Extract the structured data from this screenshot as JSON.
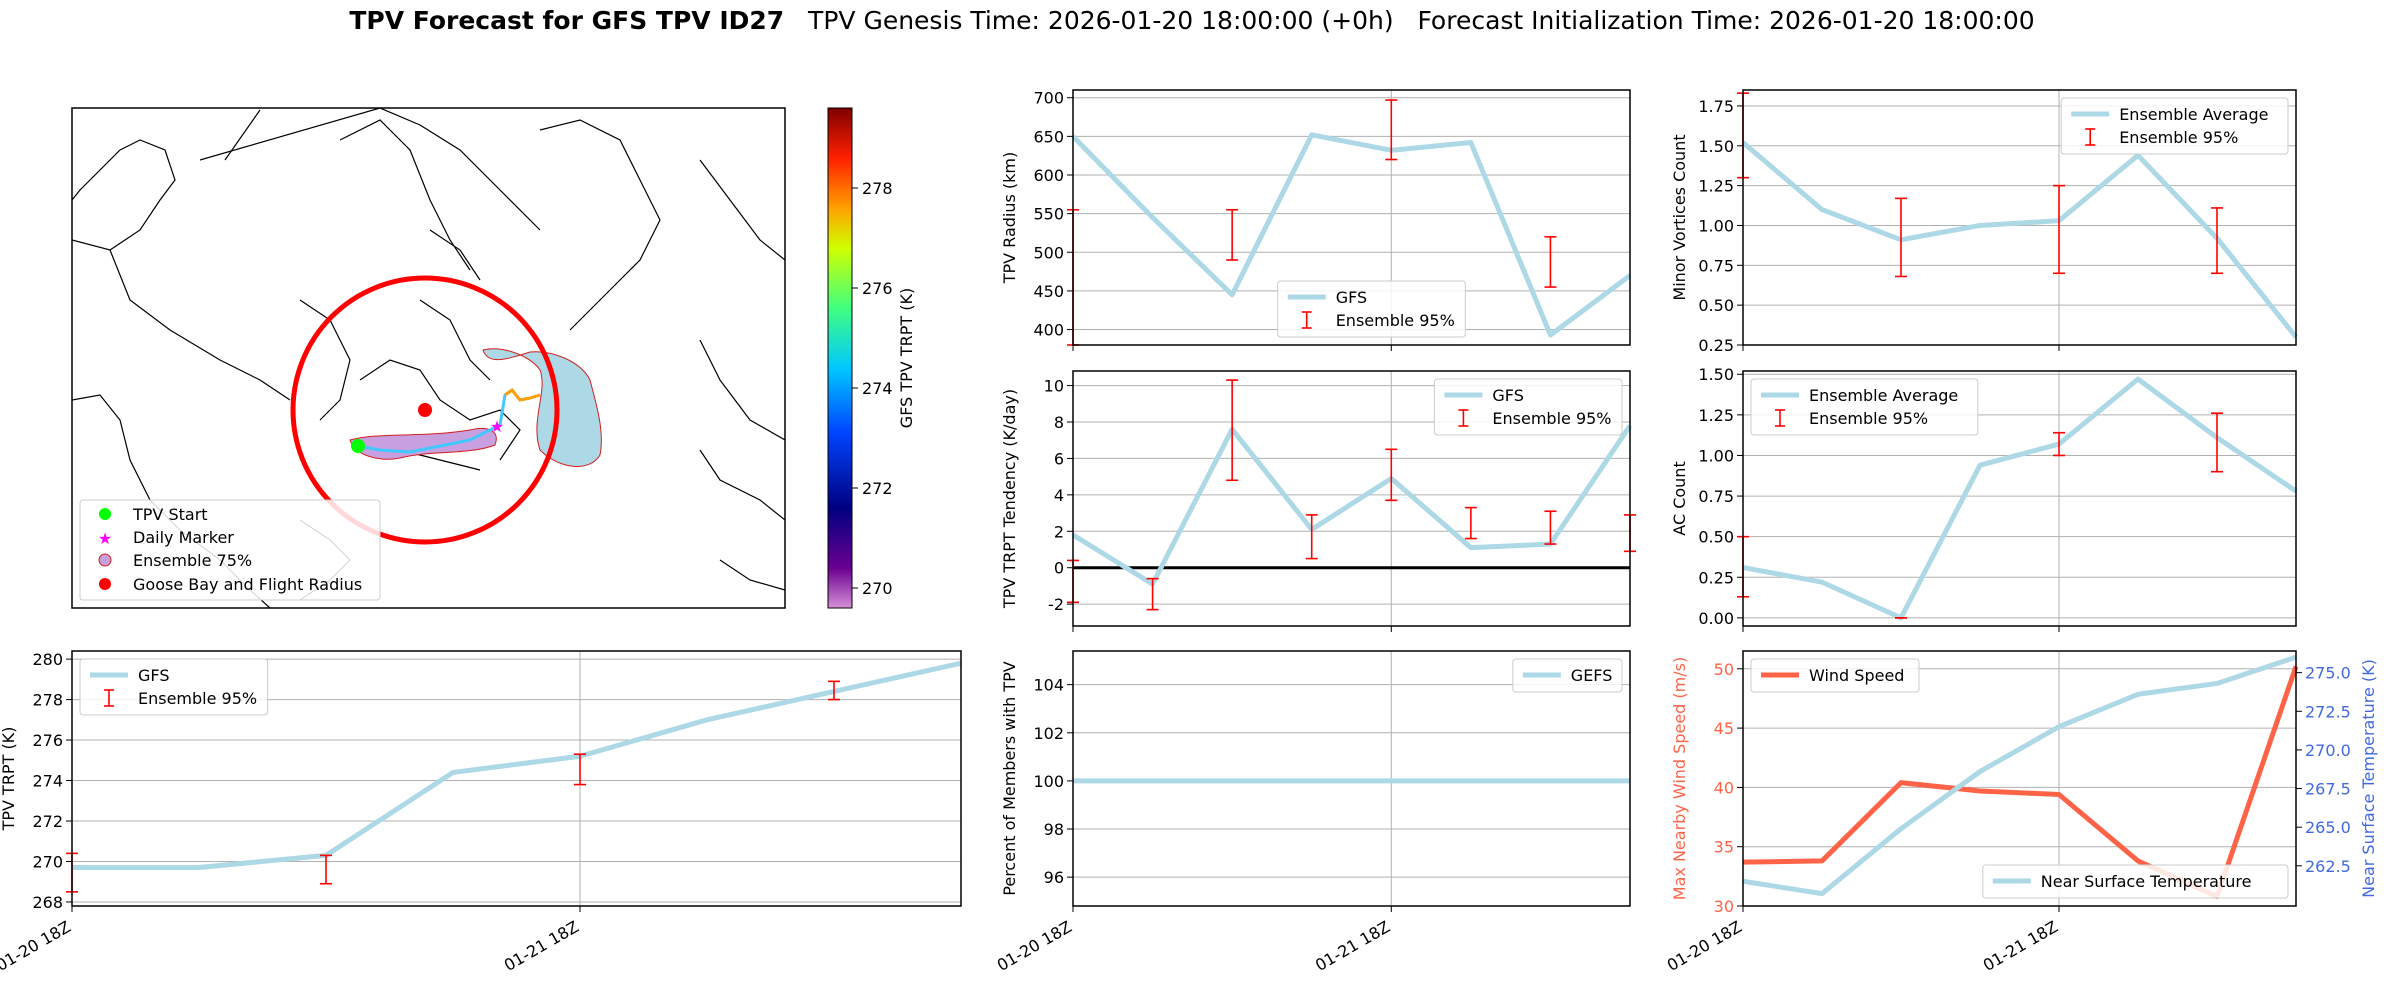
{
  "title": {
    "bold": "TPV Forecast for GFS TPV ID27",
    "genesis": "TPV Genesis Time: 2026-01-20 18:00:00 (+0h)",
    "init": "Forecast Initialization Time: 2026-01-20 18:00:00"
  },
  "colors": {
    "series": "#add8e6",
    "error": "#ff0000",
    "wind": "#ff6347",
    "temp_axis": "#4169e1",
    "zero_line": "#000000"
  },
  "map": {
    "colorbar": {
      "label": "GFS TPV TRPT (K)",
      "ticks": [
        270,
        272,
        274,
        276,
        278
      ],
      "range": [
        269.6,
        279.6
      ]
    },
    "legend": [
      "TPV Start",
      "Daily Marker",
      "Ensemble 75%",
      "Goose Bay and Flight Radius"
    ]
  },
  "chart_data": [
    {
      "id": "radius",
      "type": "line",
      "ylabel": "TPV Radius (km)",
      "ylim": [
        380,
        710
      ],
      "yticks": [
        400,
        450,
        500,
        550,
        600,
        650,
        700
      ],
      "x": [
        0,
        1,
        2,
        3,
        4,
        5,
        6,
        7
      ],
      "series": [
        {
          "name": "GFS",
          "values": [
            650,
            545,
            445,
            652,
            632,
            642,
            393,
            470
          ]
        }
      ],
      "errorbars": {
        "name": "Ensemble 95%",
        "x": [
          0,
          2,
          4,
          6
        ],
        "low": [
          380,
          490,
          620,
          455
        ],
        "high": [
          555,
          555,
          697,
          520
        ]
      },
      "legend": [
        "GFS",
        "Ensemble 95%"
      ],
      "legend_pos": "lower-center"
    },
    {
      "id": "minor",
      "type": "line",
      "ylabel": "Minor Vortices Count",
      "ylim": [
        0.25,
        1.85
      ],
      "yticks": [
        0.25,
        0.5,
        0.75,
        1.0,
        1.25,
        1.5,
        1.75
      ],
      "x": [
        0,
        1,
        2,
        3,
        4,
        5,
        6,
        7
      ],
      "series": [
        {
          "name": "Ensemble Average",
          "values": [
            1.52,
            1.1,
            0.91,
            1.0,
            1.03,
            1.44,
            0.92,
            0.3
          ]
        }
      ],
      "errorbars": {
        "name": "Ensemble 95%",
        "x": [
          0,
          2,
          4,
          6
        ],
        "low": [
          1.3,
          0.68,
          0.7,
          0.7
        ],
        "high": [
          1.83,
          1.17,
          1.25,
          1.11
        ]
      },
      "legend": [
        "Ensemble Average",
        "Ensemble 95%"
      ],
      "legend_pos": "upper-right"
    },
    {
      "id": "tendency",
      "type": "line",
      "ylabel": "TPV TRPT Tendency (K/day)",
      "ylim": [
        -3.2,
        10.8
      ],
      "yticks": [
        -2,
        0,
        2,
        4,
        6,
        8,
        10
      ],
      "hline": 0,
      "x": [
        0,
        1,
        2,
        3,
        4,
        5,
        6,
        7
      ],
      "series": [
        {
          "name": "GFS",
          "values": [
            1.8,
            -0.9,
            7.6,
            2.1,
            4.9,
            1.1,
            1.3,
            7.8
          ]
        }
      ],
      "errorbars": {
        "name": "Ensemble 95%",
        "x": [
          0,
          1,
          2,
          3,
          4,
          5,
          6,
          7
        ],
        "low": [
          -1.9,
          -2.3,
          4.8,
          0.5,
          3.7,
          1.6,
          1.3,
          0.9
        ],
        "high": [
          0.4,
          -0.6,
          10.3,
          2.9,
          6.5,
          3.3,
          3.1,
          2.9
        ]
      },
      "legend": [
        "GFS",
        "Ensemble 95%"
      ],
      "legend_pos": "upper-right"
    },
    {
      "id": "ac",
      "type": "line",
      "ylabel": "AC Count",
      "ylim": [
        -0.05,
        1.52
      ],
      "yticks": [
        0.0,
        0.25,
        0.5,
        0.75,
        1.0,
        1.25,
        1.5
      ],
      "x": [
        0,
        1,
        2,
        3,
        4,
        5,
        6,
        7
      ],
      "series": [
        {
          "name": "Ensemble Average",
          "values": [
            0.31,
            0.22,
            0.0,
            0.94,
            1.07,
            1.47,
            1.11,
            0.78
          ]
        }
      ],
      "errorbars": {
        "name": "Ensemble 95%",
        "x": [
          0,
          2,
          4,
          6
        ],
        "low": [
          0.13,
          0.0,
          1.0,
          0.9
        ],
        "high": [
          0.5,
          0.0,
          1.14,
          1.26
        ]
      },
      "legend": [
        "Ensemble Average",
        "Ensemble 95%"
      ],
      "legend_pos": "upper-left"
    },
    {
      "id": "trpt",
      "type": "line",
      "ylabel": "TPV TRPT (K)",
      "ylim": [
        267.8,
        280.4
      ],
      "yticks": [
        268,
        270,
        272,
        274,
        276,
        278,
        280
      ],
      "x": [
        0,
        1,
        2,
        3,
        4,
        5,
        6,
        7
      ],
      "xticks": [
        {
          "x": 0,
          "label": "01-20 18Z"
        },
        {
          "x": 4,
          "label": "01-21 18Z"
        }
      ],
      "series": [
        {
          "name": "GFS",
          "values": [
            269.7,
            269.7,
            270.3,
            274.4,
            275.2,
            277.0,
            278.4,
            279.8
          ]
        }
      ],
      "errorbars": {
        "name": "Ensemble 95%",
        "x": [
          0,
          2,
          4,
          6
        ],
        "low": [
          268.5,
          268.9,
          273.8,
          278.0
        ],
        "high": [
          270.4,
          270.3,
          275.3,
          278.9
        ]
      },
      "legend": [
        "GFS",
        "Ensemble 95%"
      ],
      "legend_pos": "upper-left"
    },
    {
      "id": "percent",
      "type": "line",
      "ylabel": "Percent of Members with TPV",
      "ylim": [
        94.8,
        105.4
      ],
      "yticks": [
        96,
        98,
        100,
        102,
        104
      ],
      "x": [
        0,
        1,
        2,
        3,
        4,
        5,
        6,
        7
      ],
      "xticks": [
        {
          "x": 0,
          "label": "01-20 18Z"
        },
        {
          "x": 4,
          "label": "01-21 18Z"
        }
      ],
      "series": [
        {
          "name": "GEFS",
          "values": [
            100,
            100,
            100,
            100,
            100,
            100,
            100,
            100
          ]
        }
      ],
      "legend": [
        "GEFS"
      ],
      "legend_pos": "upper-right"
    },
    {
      "id": "wind",
      "type": "line",
      "ylabel": "Max Nearby Wind Speed (m/s)",
      "ylim": [
        30,
        51.5
      ],
      "yticks": [
        30,
        35,
        40,
        45,
        50
      ],
      "x": [
        0,
        1,
        2,
        3,
        4,
        5,
        6,
        7
      ],
      "xticks": [
        {
          "x": 0,
          "label": "01-20 18Z"
        },
        {
          "x": 4,
          "label": "01-21 18Z"
        }
      ],
      "series": [
        {
          "name": "Wind Speed",
          "values": [
            33.7,
            33.8,
            40.4,
            39.7,
            39.4,
            33.8,
            30.8,
            50.2
          ],
          "axis": "left"
        },
        {
          "name": "Near Surface Temperature",
          "values": [
            261.5,
            260.7,
            264.9,
            268.6,
            271.5,
            273.6,
            274.3,
            276.0
          ],
          "axis": "right"
        }
      ],
      "y2label": "Near Surface Temperature (K)",
      "y2lim": [
        259.9,
        276.4
      ],
      "y2ticks": [
        262.5,
        265.0,
        267.5,
        270.0,
        272.5,
        275.0
      ],
      "legend": [
        "Wind Speed"
      ],
      "legend2": [
        "Near Surface Temperature"
      ]
    }
  ]
}
